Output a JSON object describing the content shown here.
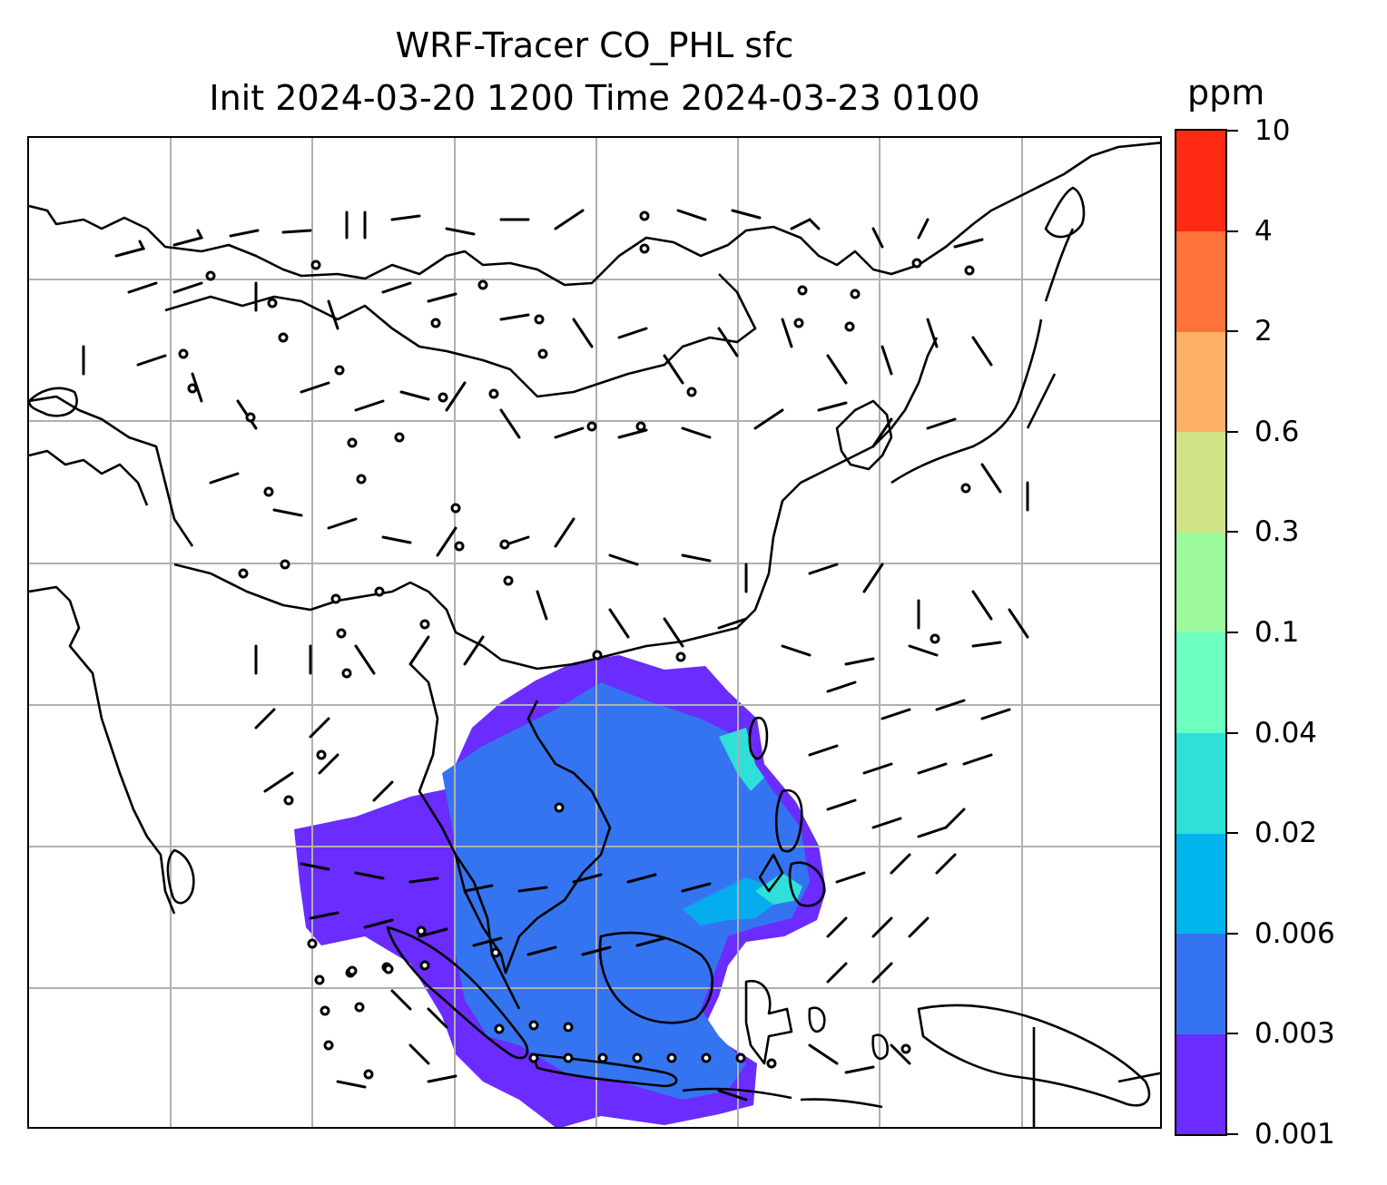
{
  "title_line1": "WRF-Tracer CO_PHL sfc",
  "title_line2": "Init 2024-03-20 1200 Time 2024-03-23 0100",
  "colorbar": {
    "unit": "ppm",
    "levels": [
      "0.001",
      "0.003",
      "0.006",
      "0.02",
      "0.04",
      "0.1",
      "0.3",
      "0.6",
      "2",
      "4",
      "10"
    ],
    "colors": [
      "#6a2cff",
      "#3574f0",
      "#00b4ee",
      "#2ee0d8",
      "#6cffc0",
      "#9cfa9c",
      "#d0e288",
      "#feb066",
      "#ff7238",
      "#ff2a14"
    ]
  },
  "map": {
    "gridlines": "on",
    "features": [
      "coastlines",
      "country-borders",
      "wind-barbs",
      "tracer-plume"
    ],
    "plume_source": "Philippines"
  }
}
